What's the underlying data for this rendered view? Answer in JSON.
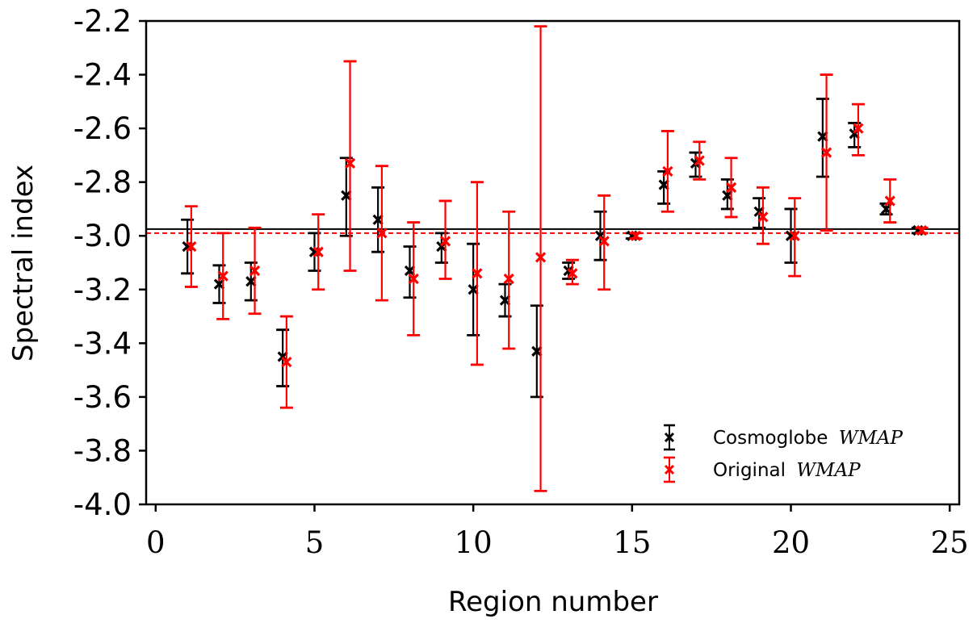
{
  "chart_data": {
    "type": "scatter",
    "xlabel": "Region number",
    "ylabel": "Spectral index",
    "xlim": [
      -0.3,
      25.3
    ],
    "ylim": [
      -4.0,
      -2.2
    ],
    "x_ticks": [
      "0",
      "5",
      "10",
      "15",
      "20",
      "25"
    ],
    "y_ticks": [
      "-2.2",
      "-2.4",
      "-2.6",
      "-2.8",
      "-3.0",
      "-3.2",
      "-3.4",
      "-3.6",
      "-3.8",
      "-4.0"
    ],
    "grid": false,
    "legend_position": "lower-right",
    "series": [
      {
        "name": "Cosmoglobe",
        "name_suffix": "WMAP",
        "color": "#000000",
        "x_offset": 0,
        "points": [
          {
            "x": 1,
            "y": -3.04,
            "lo": -3.14,
            "hi": -2.94
          },
          {
            "x": 2,
            "y": -3.18,
            "lo": -3.25,
            "hi": -3.11
          },
          {
            "x": 3,
            "y": -3.17,
            "lo": -3.24,
            "hi": -3.1
          },
          {
            "x": 4,
            "y": -3.45,
            "lo": -3.56,
            "hi": -3.35
          },
          {
            "x": 5,
            "y": -3.06,
            "lo": -3.13,
            "hi": -2.99
          },
          {
            "x": 6,
            "y": -2.85,
            "lo": -3.0,
            "hi": -2.71
          },
          {
            "x": 7,
            "y": -2.94,
            "lo": -3.06,
            "hi": -2.82
          },
          {
            "x": 8,
            "y": -3.13,
            "lo": -3.23,
            "hi": -3.04
          },
          {
            "x": 9,
            "y": -3.04,
            "lo": -3.1,
            "hi": -2.99
          },
          {
            "x": 10,
            "y": -3.2,
            "lo": -3.37,
            "hi": -3.03
          },
          {
            "x": 11,
            "y": -3.24,
            "lo": -3.3,
            "hi": -3.18
          },
          {
            "x": 12,
            "y": -3.43,
            "lo": -3.6,
            "hi": -3.26
          },
          {
            "x": 13,
            "y": -3.13,
            "lo": -3.16,
            "hi": -3.1
          },
          {
            "x": 14,
            "y": -3.0,
            "lo": -3.09,
            "hi": -2.91
          },
          {
            "x": 15,
            "y": -3.0,
            "lo": -3.01,
            "hi": -2.99
          },
          {
            "x": 16,
            "y": -2.81,
            "lo": -2.88,
            "hi": -2.76
          },
          {
            "x": 17,
            "y": -2.73,
            "lo": -2.78,
            "hi": -2.69
          },
          {
            "x": 18,
            "y": -2.85,
            "lo": -2.9,
            "hi": -2.79
          },
          {
            "x": 19,
            "y": -2.91,
            "lo": -2.97,
            "hi": -2.86
          },
          {
            "x": 20,
            "y": -3.0,
            "lo": -3.1,
            "hi": -2.9
          },
          {
            "x": 21,
            "y": -2.63,
            "lo": -2.78,
            "hi": -2.49
          },
          {
            "x": 22,
            "y": -2.62,
            "lo": -2.67,
            "hi": -2.58
          },
          {
            "x": 23,
            "y": -2.9,
            "lo": -2.92,
            "hi": -2.88
          },
          {
            "x": 24,
            "y": -2.98,
            "lo": -2.99,
            "hi": -2.97
          }
        ],
        "mean_line": -2.975,
        "mean_line_style": "solid"
      },
      {
        "name": "Original",
        "name_suffix": "WMAP",
        "color": "#ff0000",
        "x_offset": 0.12,
        "points": [
          {
            "x": 1,
            "y": -3.04,
            "lo": -3.19,
            "hi": -2.89
          },
          {
            "x": 2,
            "y": -3.15,
            "lo": -3.31,
            "hi": -2.99
          },
          {
            "x": 3,
            "y": -3.13,
            "lo": -3.29,
            "hi": -2.97
          },
          {
            "x": 4,
            "y": -3.47,
            "lo": -3.64,
            "hi": -3.3
          },
          {
            "x": 5,
            "y": -3.06,
            "lo": -3.2,
            "hi": -2.92
          },
          {
            "x": 6,
            "y": -2.73,
            "lo": -3.13,
            "hi": -2.35
          },
          {
            "x": 7,
            "y": -2.99,
            "lo": -3.24,
            "hi": -2.74
          },
          {
            "x": 8,
            "y": -3.16,
            "lo": -3.37,
            "hi": -2.95
          },
          {
            "x": 9,
            "y": -3.02,
            "lo": -3.16,
            "hi": -2.87
          },
          {
            "x": 10,
            "y": -3.14,
            "lo": -3.48,
            "hi": -2.8
          },
          {
            "x": 11,
            "y": -3.16,
            "lo": -3.42,
            "hi": -2.91
          },
          {
            "x": 12,
            "y": -3.08,
            "lo": -3.95,
            "hi": -2.22
          },
          {
            "x": 13,
            "y": -3.14,
            "lo": -3.18,
            "hi": -3.09
          },
          {
            "x": 14,
            "y": -3.02,
            "lo": -3.2,
            "hi": -2.85
          },
          {
            "x": 15,
            "y": -3.0,
            "lo": -3.01,
            "hi": -2.99
          },
          {
            "x": 16,
            "y": -2.76,
            "lo": -2.91,
            "hi": -2.61
          },
          {
            "x": 17,
            "y": -2.72,
            "lo": -2.79,
            "hi": -2.65
          },
          {
            "x": 18,
            "y": -2.82,
            "lo": -2.93,
            "hi": -2.71
          },
          {
            "x": 19,
            "y": -2.93,
            "lo": -3.03,
            "hi": -2.82
          },
          {
            "x": 20,
            "y": -3.0,
            "lo": -3.15,
            "hi": -2.86
          },
          {
            "x": 21,
            "y": -2.69,
            "lo": -2.98,
            "hi": -2.4
          },
          {
            "x": 22,
            "y": -2.6,
            "lo": -2.7,
            "hi": -2.51
          },
          {
            "x": 23,
            "y": -2.87,
            "lo": -2.95,
            "hi": -2.79
          },
          {
            "x": 24,
            "y": -2.98,
            "lo": -2.99,
            "hi": -2.97
          }
        ],
        "mean_line": -2.99,
        "mean_line_style": "dashed"
      }
    ]
  }
}
